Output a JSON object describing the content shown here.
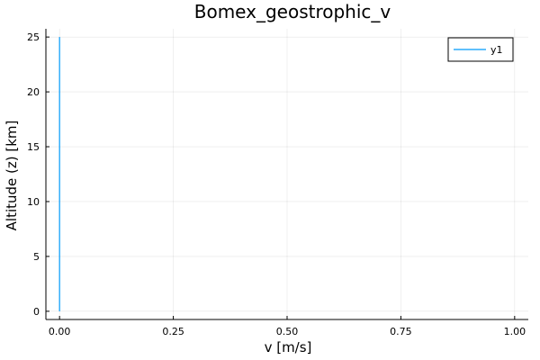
{
  "chart_data": {
    "type": "line",
    "title": "Bomex_geostrophic_v",
    "xlabel": "v [m/s]",
    "ylabel": "Altitude (z) [km]",
    "xlim": [
      -0.03,
      1.03
    ],
    "ylim": [
      -0.75,
      25.75
    ],
    "xticks": [
      0.0,
      0.25,
      0.5,
      0.75,
      1.0
    ],
    "xtick_labels": [
      "0.00",
      "0.25",
      "0.50",
      "0.75",
      "1.00"
    ],
    "yticks": [
      0,
      5,
      10,
      15,
      20,
      25
    ],
    "ytick_labels": [
      "0",
      "5",
      "10",
      "15",
      "20",
      "25"
    ],
    "grid": true,
    "legend_position": "top-right",
    "series": [
      {
        "name": "y1",
        "color": "#009AFA",
        "x": [
          0,
          0
        ],
        "y": [
          0,
          25
        ]
      }
    ]
  }
}
